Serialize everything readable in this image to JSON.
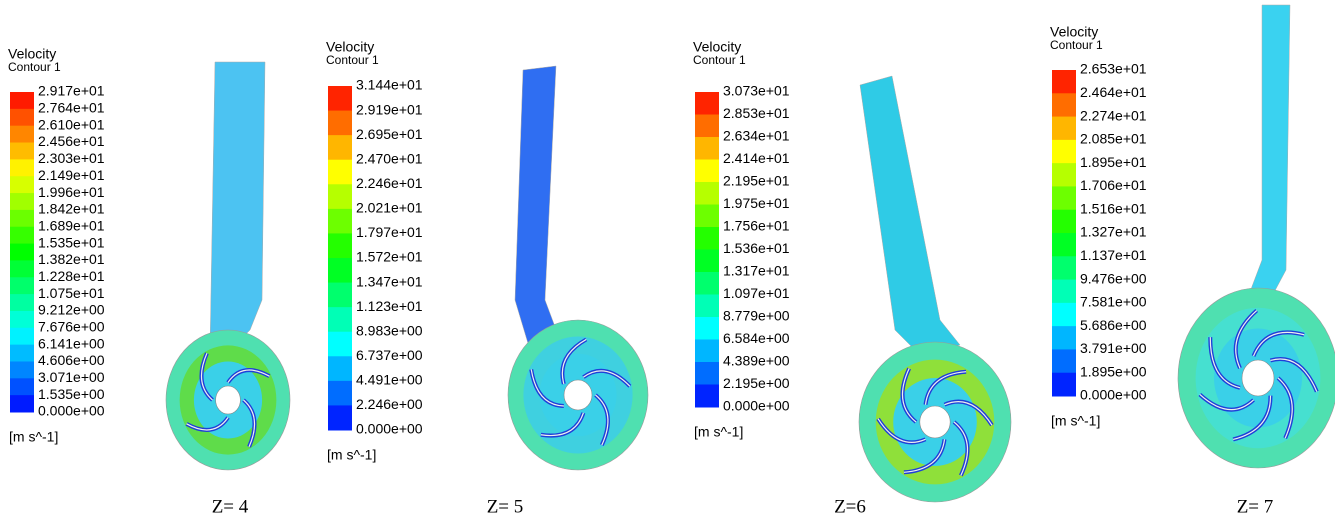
{
  "panels": [
    {
      "title": "Velocity",
      "subtitle": "Contour 1",
      "labels": [
        "2.917e+01",
        "2.764e+01",
        "2.610e+01",
        "2.456e+01",
        "2.303e+01",
        "2.149e+01",
        "1.996e+01",
        "1.842e+01",
        "1.689e+01",
        "1.535e+01",
        "1.382e+01",
        "1.228e+01",
        "1.075e+01",
        "9.212e+00",
        "7.676e+00",
        "6.141e+00",
        "4.606e+00",
        "3.071e+00",
        "1.535e+00",
        "0.000e+00"
      ],
      "unit": "[m s^-1]",
      "caption": "Z= 4"
    },
    {
      "title": "Velocity",
      "subtitle": "Contour 1",
      "labels": [
        "3.144e+01",
        "2.919e+01",
        "2.695e+01",
        "2.470e+01",
        "2.246e+01",
        "2.021e+01",
        "1.797e+01",
        "1.572e+01",
        "1.347e+01",
        "1.123e+01",
        "8.983e+00",
        "6.737e+00",
        "4.491e+00",
        "2.246e+00",
        "0.000e+00"
      ],
      "unit": "[m s^-1]",
      "caption": "Z= 5"
    },
    {
      "title": "Velocity",
      "subtitle": "Contour 1",
      "labels": [
        "3.073e+01",
        "2.853e+01",
        "2.634e+01",
        "2.414e+01",
        "2.195e+01",
        "1.975e+01",
        "1.756e+01",
        "1.536e+01",
        "1.317e+01",
        "1.097e+01",
        "8.779e+00",
        "6.584e+00",
        "4.389e+00",
        "2.195e+00",
        "0.000e+00"
      ],
      "unit": "[m s^-1]",
      "caption": "Z=6"
    },
    {
      "title": "Velocity",
      "subtitle": "Contour 1",
      "labels": [
        "2.653e+01",
        "2.464e+01",
        "2.274e+01",
        "2.085e+01",
        "1.895e+01",
        "1.706e+01",
        "1.516e+01",
        "1.327e+01",
        "1.137e+01",
        "9.476e+00",
        "7.581e+00",
        "5.686e+00",
        "3.791e+00",
        "1.895e+00",
        "0.000e+00"
      ],
      "unit": "[m s^-1]",
      "caption": "Z= 7"
    }
  ]
}
